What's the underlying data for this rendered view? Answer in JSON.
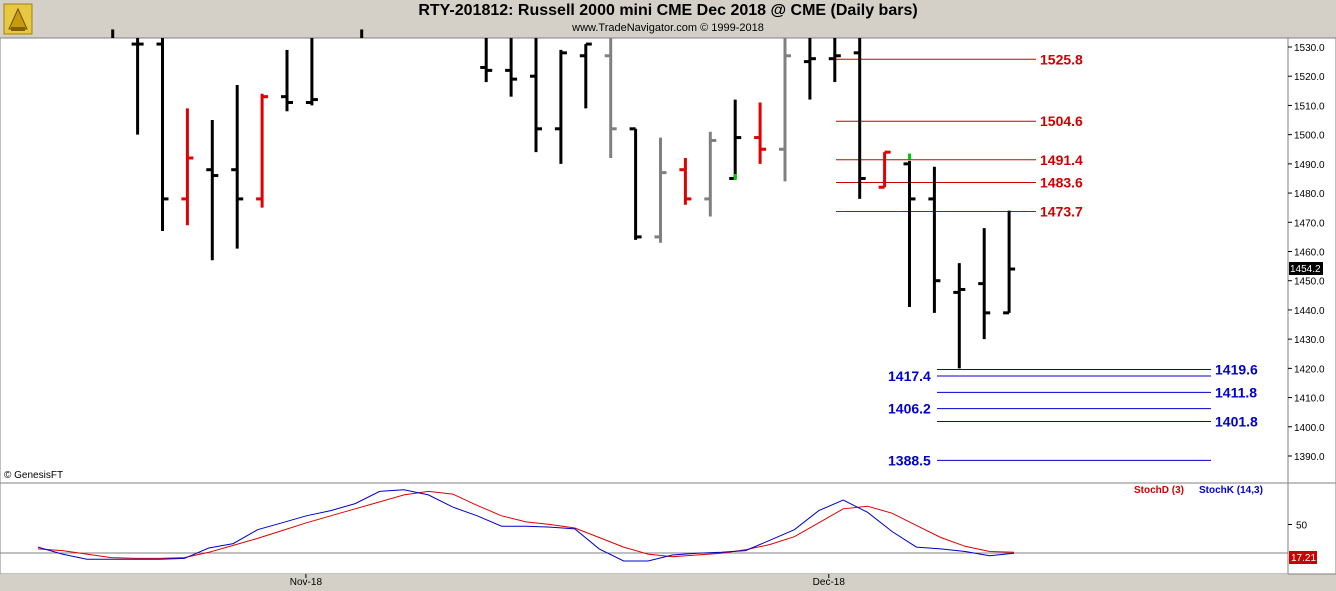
{
  "header": {
    "title": "RTY-201812:  Russell 2000 mini CME Dec 2018 @ CME  (Daily bars)",
    "subtitle": "www.TradeNavigator.com © 1999-2018"
  },
  "watermark": "© GenesisFT",
  "price_marker": "1454.2",
  "stoch_marker": "17.21",
  "stoch_legend": {
    "d": "StochD (3)",
    "k": "StochK (14,3)"
  },
  "colors": {
    "up": "#e00000",
    "down": "#000000",
    "gray": "#808080",
    "green": "#00cc00",
    "support": "#0000cc",
    "resistance": "#cc0000",
    "stochD": "#dd0000",
    "stochK": "#0000cc"
  },
  "chart_data": [
    {
      "type": "ohlc",
      "title": "RTY-201812:  Russell 2000 mini CME Dec 2018 @ CME  (Daily bars)",
      "ylim": [
        1380,
        1538
      ],
      "yticks": [
        1390.0,
        1400.0,
        1410.0,
        1420.0,
        1430.0,
        1440.0,
        1450.0,
        1460.0,
        1470.0,
        1480.0,
        1490.0,
        1500.0,
        1510.0,
        1520.0,
        1530.0
      ],
      "xlabels": [
        {
          "label": "Nov-18",
          "index": 11
        },
        {
          "label": "Dec-18",
          "index": 32
        }
      ],
      "bars": [
        {
          "i": 3,
          "h": 1538,
          "l": 1536,
          "o": 1537,
          "c": 1537,
          "col": "down"
        },
        {
          "i": 4,
          "h": 1538,
          "l": 1500,
          "o": 1531,
          "c": 1531,
          "col": "down"
        },
        {
          "i": 5,
          "h": 1538,
          "l": 1467,
          "o": 1531,
          "c": 1478,
          "col": "down"
        },
        {
          "i": 6,
          "h": 1509,
          "l": 1469,
          "o": 1478,
          "c": 1492,
          "col": "up"
        },
        {
          "i": 7,
          "h": 1505,
          "l": 1457,
          "o": 1488,
          "c": 1486,
          "col": "down"
        },
        {
          "i": 8,
          "h": 1517,
          "l": 1461,
          "o": 1488,
          "c": 1478,
          "col": "down"
        },
        {
          "i": 9,
          "h": 1514,
          "l": 1475,
          "o": 1478,
          "c": 1513,
          "col": "up"
        },
        {
          "i": 10,
          "h": 1529,
          "l": 1508,
          "o": 1513,
          "c": 1511,
          "col": "down"
        },
        {
          "i": 11,
          "h": 1538,
          "l": 1510,
          "o": 1511,
          "c": 1512,
          "col": "down"
        },
        {
          "i": 13,
          "h": 1538,
          "l": 1536,
          "o": 1537,
          "c": 1537,
          "col": "down"
        },
        {
          "i": 18,
          "h": 1538,
          "l": 1518,
          "o": 1523,
          "c": 1522,
          "col": "down"
        },
        {
          "i": 19,
          "h": 1538,
          "l": 1513,
          "o": 1522,
          "c": 1519,
          "col": "down"
        },
        {
          "i": 20,
          "h": 1538,
          "l": 1494,
          "o": 1520,
          "c": 1502,
          "col": "down"
        },
        {
          "i": 21,
          "h": 1529,
          "l": 1490,
          "o": 1502,
          "c": 1528,
          "col": "down"
        },
        {
          "i": 22,
          "h": 1531,
          "l": 1509,
          "o": 1527,
          "c": 1531,
          "col": "down"
        },
        {
          "i": 23,
          "h": 1538,
          "l": 1492,
          "o": 1527,
          "c": 1502,
          "col": "gray"
        },
        {
          "i": 24,
          "h": 1502,
          "l": 1464,
          "o": 1502,
          "c": 1465,
          "col": "down"
        },
        {
          "i": 25,
          "h": 1499,
          "l": 1463,
          "o": 1465,
          "c": 1487,
          "col": "gray"
        },
        {
          "i": 26,
          "h": 1492,
          "l": 1476,
          "o": 1488,
          "c": 1478,
          "col": "up"
        },
        {
          "i": 27,
          "h": 1501,
          "l": 1472,
          "o": 1478,
          "c": 1498,
          "col": "gray"
        },
        {
          "i": 28,
          "h": 1512,
          "l": 1485,
          "o": 1485,
          "c": 1499,
          "col": "down"
        },
        {
          "i": 29,
          "h": 1511,
          "l": 1490,
          "o": 1499,
          "c": 1495,
          "col": "up"
        },
        {
          "i": 30,
          "h": 1538,
          "l": 1484,
          "o": 1495,
          "c": 1527,
          "col": "gray"
        },
        {
          "i": 31,
          "h": 1538,
          "l": 1512,
          "o": 1525,
          "c": 1526,
          "col": "down"
        },
        {
          "i": 32,
          "h": 1538,
          "l": 1518,
          "o": 1526,
          "c": 1527,
          "col": "down"
        },
        {
          "i": 33,
          "h": 1538,
          "l": 1478,
          "o": 1528,
          "c": 1485,
          "col": "down"
        },
        {
          "i": 34,
          "h": 1494,
          "l": 1482,
          "o": 1482,
          "c": 1494,
          "col": "up"
        },
        {
          "i": 35,
          "h": 1491,
          "l": 1441,
          "o": 1490,
          "c": 1478,
          "col": "down"
        },
        {
          "i": 36,
          "h": 1489,
          "l": 1439,
          "o": 1478,
          "c": 1450,
          "col": "down"
        },
        {
          "i": 37,
          "h": 1456,
          "l": 1420,
          "o": 1446,
          "c": 1447,
          "col": "down"
        },
        {
          "i": 38,
          "h": 1468,
          "l": 1430,
          "o": 1449,
          "c": 1439,
          "col": "down"
        },
        {
          "i": 39,
          "h": 1474,
          "l": 1439,
          "o": 1439,
          "c": 1454,
          "col": "down"
        }
      ],
      "green_ticks": [
        {
          "i": 28,
          "v": 1485.5
        },
        {
          "i": 35,
          "v": 1492.5
        }
      ],
      "levels": [
        {
          "label": "1525.8",
          "value": 1525.8,
          "kind": "resistance"
        },
        {
          "label": "1504.6",
          "value": 1504.6,
          "kind": "resistance"
        },
        {
          "label": "1491.4",
          "value": 1491.4,
          "kind": "resistance"
        },
        {
          "label": "1483.6",
          "value": 1483.6,
          "kind": "resistance"
        },
        {
          "label": "1473.7",
          "value": 1473.7,
          "kind": "resistance"
        },
        {
          "label": "1419.6",
          "value": 1419.6,
          "kind": "support",
          "side": "right"
        },
        {
          "label": "1417.4",
          "value": 1417.4,
          "kind": "support",
          "side": "left"
        },
        {
          "label": "1411.8",
          "value": 1411.8,
          "kind": "support",
          "side": "right"
        },
        {
          "label": "1406.2",
          "value": 1406.2,
          "kind": "support",
          "side": "left"
        },
        {
          "label": "1401.8",
          "value": 1401.8,
          "kind": "support",
          "side": "right"
        },
        {
          "label": "1388.5",
          "value": 1388.5,
          "kind": "support",
          "side": "left"
        }
      ]
    },
    {
      "type": "line",
      "ylim": [
        0,
        100
      ],
      "yticks": [
        50
      ],
      "hline": 17.21,
      "series": [
        {
          "name": "StochD (3)",
          "values": [
            22,
            20,
            16,
            12,
            11,
            11,
            12,
            18,
            26,
            34,
            43,
            52,
            60,
            68,
            76,
            84,
            88,
            85,
            72,
            60,
            53,
            50,
            46,
            35,
            24,
            16,
            13,
            15,
            17,
            21,
            27,
            36,
            52,
            68,
            71,
            63,
            49,
            35,
            25,
            19,
            18
          ]
        },
        {
          "name": "StochK (14,3)",
          "values": [
            24,
            16,
            10,
            10,
            10,
            10,
            11,
            23,
            28,
            44,
            52,
            60,
            66,
            74,
            88,
            90,
            84,
            70,
            60,
            48,
            48,
            47,
            45,
            22,
            8,
            8,
            15,
            17,
            18,
            20,
            32,
            44,
            66,
            78,
            64,
            42,
            24,
            22,
            19,
            14,
            17
          ]
        }
      ]
    }
  ]
}
